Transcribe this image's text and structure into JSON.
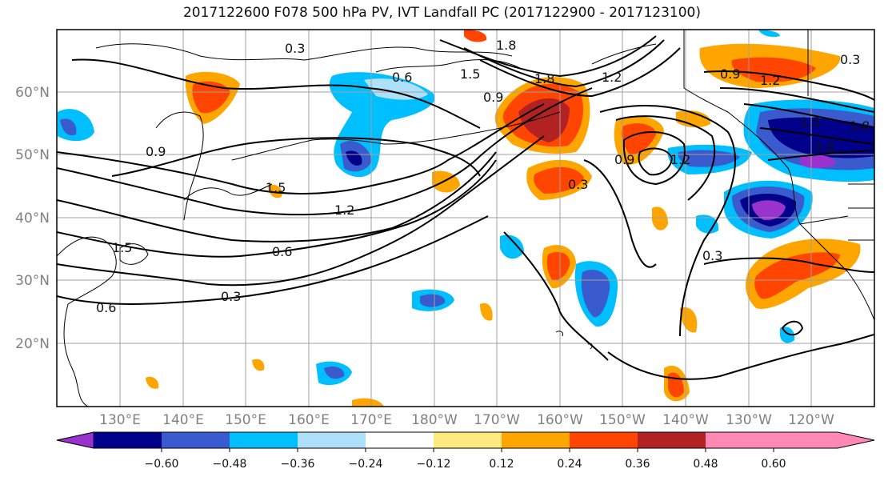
{
  "title": "2017122600 F078 500 hPa PV, IVT Landfall PC (2017122900 - 2017123100)",
  "map": {
    "lat_labels": [
      "60°N",
      "50°N",
      "40°N",
      "30°N",
      "20°N"
    ],
    "lon_labels": [
      "130°E",
      "140°E",
      "150°E",
      "160°E",
      "170°E",
      "180°W",
      "170°W",
      "160°W",
      "150°W",
      "140°W",
      "130°W",
      "120°W"
    ],
    "contour_labels": [
      "0.3",
      "0.6",
      "0.9",
      "1.2",
      "1.5",
      "1.8",
      "0.3",
      "0.6",
      "0.9",
      "1.2",
      "1.5",
      "1.8",
      "0.3",
      "0.6",
      "0.9",
      "1.2",
      "1.5",
      "1.8",
      "0.3",
      "0.6",
      "0.9",
      "1.2",
      "1.5",
      "0.6",
      "0.3"
    ]
  },
  "colorbar": {
    "tick_labels": [
      "−0.60",
      "−0.48",
      "−0.36",
      "−0.24",
      "−0.12",
      "0.12",
      "0.24",
      "0.36",
      "0.48",
      "0.60"
    ],
    "colors": [
      "#9a32cd",
      "#00008b",
      "#3a5bcd",
      "#00bfff",
      "#afe0fa",
      "#ffffff",
      "#ffea80",
      "#ffa500",
      "#ff4500",
      "#b22222",
      "#ff88b5"
    ]
  }
}
